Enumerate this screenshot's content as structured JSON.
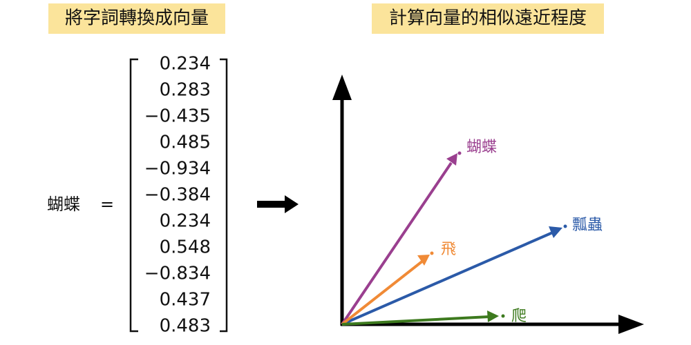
{
  "left": {
    "title": "將字詞轉換成向量",
    "word": "蝴蝶",
    "equals": "=",
    "vector": [
      "0.234",
      "0.283",
      "−0.435",
      "0.485",
      "−0.934",
      "−0.384",
      "0.234",
      "0.548",
      "−0.834",
      "0.437",
      "0.483"
    ]
  },
  "right": {
    "title": "計算向量的相似遠近程度",
    "vectors": [
      {
        "label": "蝴蝶"
      },
      {
        "label": "瓢蟲"
      },
      {
        "label": "飛"
      },
      {
        "label": "爬"
      }
    ]
  }
}
